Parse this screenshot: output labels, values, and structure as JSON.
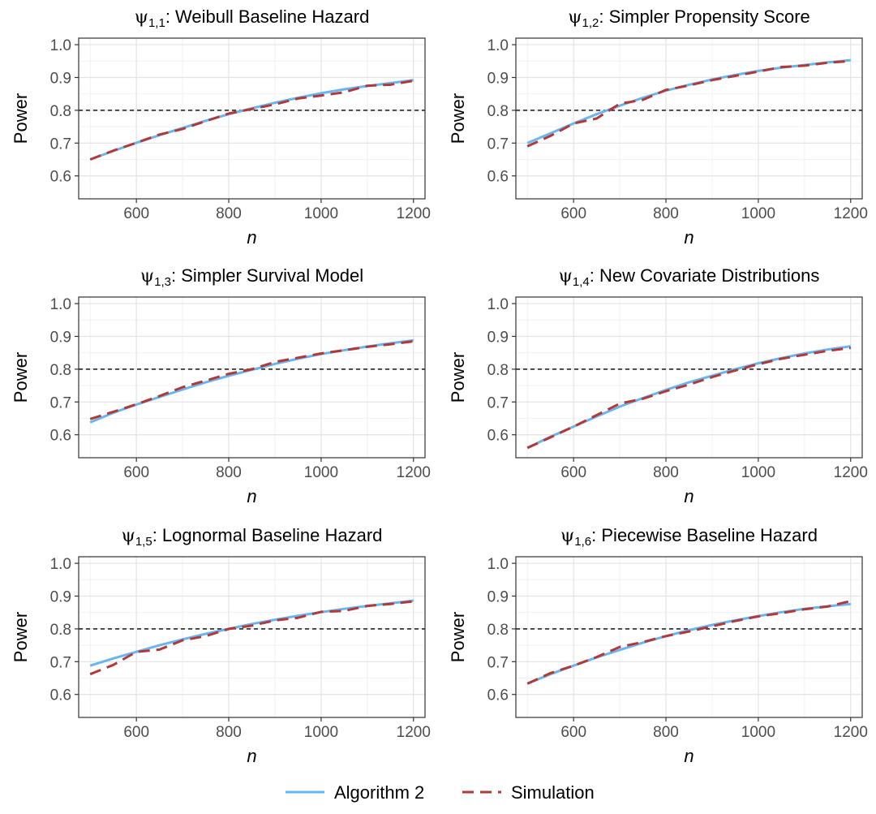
{
  "chart_data": {
    "type": "line",
    "shared": {
      "xlabel": "n",
      "ylabel": "Power",
      "xlim": [
        475,
        1225
      ],
      "ylim": [
        0.53,
        1.02
      ],
      "xticks": [
        600,
        800,
        1000,
        1200
      ],
      "yticks": [
        0.6,
        0.7,
        0.8,
        0.9,
        1.0
      ],
      "ytick_labels": [
        "0.6",
        "0.7",
        "0.8",
        "0.9",
        "1.0"
      ],
      "reference_line": 0.8,
      "grid": true,
      "legend_position": "bottom"
    },
    "legend": [
      {
        "name": "Algorithm 2",
        "color": "#6ab4ef",
        "dash": "solid"
      },
      {
        "name": "Simulation",
        "color": "#b03a3a",
        "dash": "dashed"
      }
    ],
    "panels": [
      {
        "title_sym": "ψ",
        "title_sub": "1,1",
        "title_text": ": Weibull Baseline Hazard",
        "x": [
          500,
          550,
          600,
          650,
          700,
          750,
          800,
          850,
          900,
          950,
          1000,
          1050,
          1100,
          1150,
          1200
        ],
        "series": [
          {
            "name": "Algorithm 2",
            "values": [
              0.65,
              0.676,
              0.701,
              0.724,
              0.746,
              0.768,
              0.788,
              0.806,
              0.823,
              0.838,
              0.852,
              0.864,
              0.874,
              0.883,
              0.892
            ]
          },
          {
            "name": "Simulation",
            "values": [
              0.65,
              0.677,
              0.701,
              0.726,
              0.743,
              0.767,
              0.79,
              0.804,
              0.818,
              0.836,
              0.845,
              0.855,
              0.875,
              0.878,
              0.89
            ]
          }
        ]
      },
      {
        "title_sym": "ψ",
        "title_sub": "1,2",
        "title_text": ": Simpler Propensity Score",
        "x": [
          500,
          550,
          600,
          650,
          700,
          750,
          800,
          850,
          900,
          950,
          1000,
          1050,
          1100,
          1150,
          1200
        ],
        "series": [
          {
            "name": "Algorithm 2",
            "values": [
              0.7,
              0.73,
              0.76,
              0.788,
              0.814,
              0.838,
              0.86,
              0.878,
              0.894,
              0.908,
              0.92,
              0.93,
              0.938,
              0.946,
              0.953
            ]
          },
          {
            "name": "Simulation",
            "values": [
              0.69,
              0.722,
              0.76,
              0.775,
              0.82,
              0.832,
              0.862,
              0.876,
              0.892,
              0.905,
              0.918,
              0.932,
              0.936,
              0.945,
              0.95
            ]
          }
        ]
      },
      {
        "title_sym": "ψ",
        "title_sub": "1,3",
        "title_text": ": Simpler Survival Model",
        "x": [
          500,
          550,
          600,
          650,
          700,
          750,
          800,
          850,
          900,
          950,
          1000,
          1050,
          1100,
          1150,
          1200
        ],
        "series": [
          {
            "name": "Algorithm 2",
            "values": [
              0.638,
              0.667,
              0.692,
              0.715,
              0.738,
              0.76,
              0.78,
              0.798,
              0.816,
              0.832,
              0.846,
              0.858,
              0.869,
              0.879,
              0.888
            ]
          },
          {
            "name": "Simulation",
            "values": [
              0.648,
              0.67,
              0.693,
              0.718,
              0.745,
              0.765,
              0.786,
              0.8,
              0.822,
              0.835,
              0.848,
              0.858,
              0.868,
              0.876,
              0.885
            ]
          }
        ]
      },
      {
        "title_sym": "ψ",
        "title_sub": "1,4",
        "title_text": ": New Covariate Distributions",
        "x": [
          500,
          550,
          600,
          650,
          700,
          750,
          800,
          850,
          900,
          950,
          1000,
          1050,
          1100,
          1150,
          1200
        ],
        "series": [
          {
            "name": "Algorithm 2",
            "values": [
              0.56,
              0.594,
              0.625,
              0.656,
              0.686,
              0.712,
              0.737,
              0.76,
              0.78,
              0.8,
              0.818,
              0.834,
              0.848,
              0.86,
              0.87
            ]
          },
          {
            "name": "Simulation",
            "values": [
              0.56,
              0.592,
              0.625,
              0.66,
              0.695,
              0.71,
              0.733,
              0.753,
              0.776,
              0.796,
              0.815,
              0.832,
              0.844,
              0.856,
              0.865
            ]
          }
        ]
      },
      {
        "title_sym": "ψ",
        "title_sub": "1,5",
        "title_text": ": Lognormal Baseline Hazard",
        "x": [
          500,
          550,
          600,
          650,
          700,
          750,
          800,
          850,
          900,
          950,
          1000,
          1050,
          1100,
          1150,
          1200
        ],
        "series": [
          {
            "name": "Algorithm 2",
            "values": [
              0.688,
              0.71,
              0.73,
              0.75,
              0.768,
              0.785,
              0.8,
              0.815,
              0.828,
              0.84,
              0.851,
              0.861,
              0.87,
              0.878,
              0.886
            ]
          },
          {
            "name": "Simulation",
            "values": [
              0.662,
              0.69,
              0.73,
              0.737,
              0.765,
              0.778,
              0.8,
              0.81,
              0.826,
              0.834,
              0.852,
              0.855,
              0.87,
              0.876,
              0.884
            ]
          }
        ]
      },
      {
        "title_sym": "ψ",
        "title_sub": "1,6",
        "title_text": ": Piecewise Baseline Hazard",
        "x": [
          500,
          550,
          600,
          650,
          700,
          750,
          800,
          850,
          900,
          950,
          1000,
          1050,
          1100,
          1150,
          1200
        ],
        "series": [
          {
            "name": "Algorithm 2",
            "values": [
              0.633,
              0.662,
              0.688,
              0.713,
              0.736,
              0.758,
              0.778,
              0.796,
              0.812,
              0.826,
              0.839,
              0.851,
              0.861,
              0.869,
              0.876
            ]
          },
          {
            "name": "Simulation",
            "values": [
              0.633,
              0.665,
              0.688,
              0.714,
              0.745,
              0.76,
              0.778,
              0.792,
              0.808,
              0.824,
              0.838,
              0.848,
              0.86,
              0.868,
              0.885
            ]
          }
        ]
      }
    ]
  }
}
